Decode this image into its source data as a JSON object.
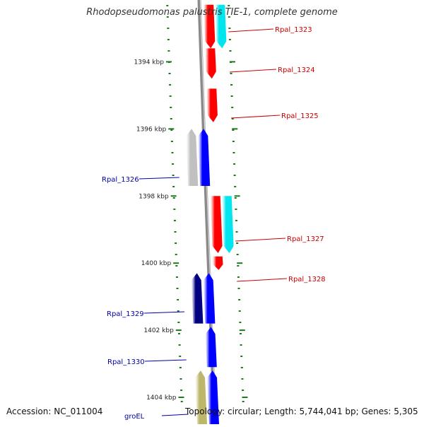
{
  "title": "Rhodopseudomonas palustris TIE-1, complete genome",
  "footer": {
    "accession": "Accession: NC_011004",
    "topology": "Topology: circular; Length: 5,744,041 bp; Genes: 5,305"
  },
  "colors": {
    "backbone": "#8a8a8a",
    "tick": "#1a7a1a",
    "label_forward": "#cc0000",
    "label_reverse": "#0000aa",
    "red": "#ff0000",
    "cyan": "#00e5ee",
    "blue": "#0000ff",
    "navy": "#000080",
    "grey": "#c0c0c0",
    "khaki": "#bdb76b"
  },
  "scale_labels": [
    {
      "text": "1394 kbp",
      "kbp": 1394
    },
    {
      "text": "1396 kbp",
      "kbp": 1396
    },
    {
      "text": "1398 kbp",
      "kbp": 1398
    },
    {
      "text": "1400 kbp",
      "kbp": 1400
    },
    {
      "text": "1402 kbp",
      "kbp": 1402
    },
    {
      "text": "1404 kbp",
      "kbp": 1404
    }
  ],
  "genes": [
    {
      "label": "Rpal_1323",
      "strand": "+",
      "start_kbp": 1392.3,
      "end_kbp": 1393.6,
      "color": "red"
    },
    {
      "label": "Rpal_1324",
      "strand": "+",
      "start_kbp": 1393.6,
      "end_kbp": 1394.5,
      "color": "red"
    },
    {
      "label": "Rpal_1325",
      "strand": "+",
      "start_kbp": 1394.8,
      "end_kbp": 1395.8,
      "color": "red"
    },
    {
      "label": "Rpal_1326",
      "strand": "-",
      "start_kbp": 1396.0,
      "end_kbp": 1397.7,
      "color": "blue"
    },
    {
      "label": "Rpal_1327",
      "strand": "+",
      "start_kbp": 1398.0,
      "end_kbp": 1399.7,
      "color": "red"
    },
    {
      "label": "Rpal_1328",
      "strand": "+",
      "start_kbp": 1399.8,
      "end_kbp": 1400.2,
      "color": "red"
    },
    {
      "label": "Rpal_1329",
      "strand": "-",
      "start_kbp": 1400.3,
      "end_kbp": 1401.8,
      "color": "blue"
    },
    {
      "label": "Rpal_1330",
      "strand": "-",
      "start_kbp": 1401.9,
      "end_kbp": 1403.1,
      "color": "blue"
    },
    {
      "label": "groEL",
      "strand": "-",
      "start_kbp": 1403.2,
      "end_kbp": 1404.8,
      "color": "blue"
    }
  ],
  "features": [
    {
      "strand": "+",
      "start_kbp": 1392.3,
      "end_kbp": 1393.6,
      "color": "cyan"
    },
    {
      "strand": "-",
      "start_kbp": 1396.0,
      "end_kbp": 1397.7,
      "color": "grey"
    },
    {
      "strand": "+",
      "start_kbp": 1398.0,
      "end_kbp": 1399.7,
      "color": "cyan"
    },
    {
      "strand": "-",
      "start_kbp": 1400.3,
      "end_kbp": 1401.8,
      "color": "navy"
    },
    {
      "strand": "-",
      "start_kbp": 1403.2,
      "end_kbp": 1404.8,
      "color": "khaki"
    }
  ],
  "view_range_kbp": [
    1392.2,
    1404.8
  ]
}
